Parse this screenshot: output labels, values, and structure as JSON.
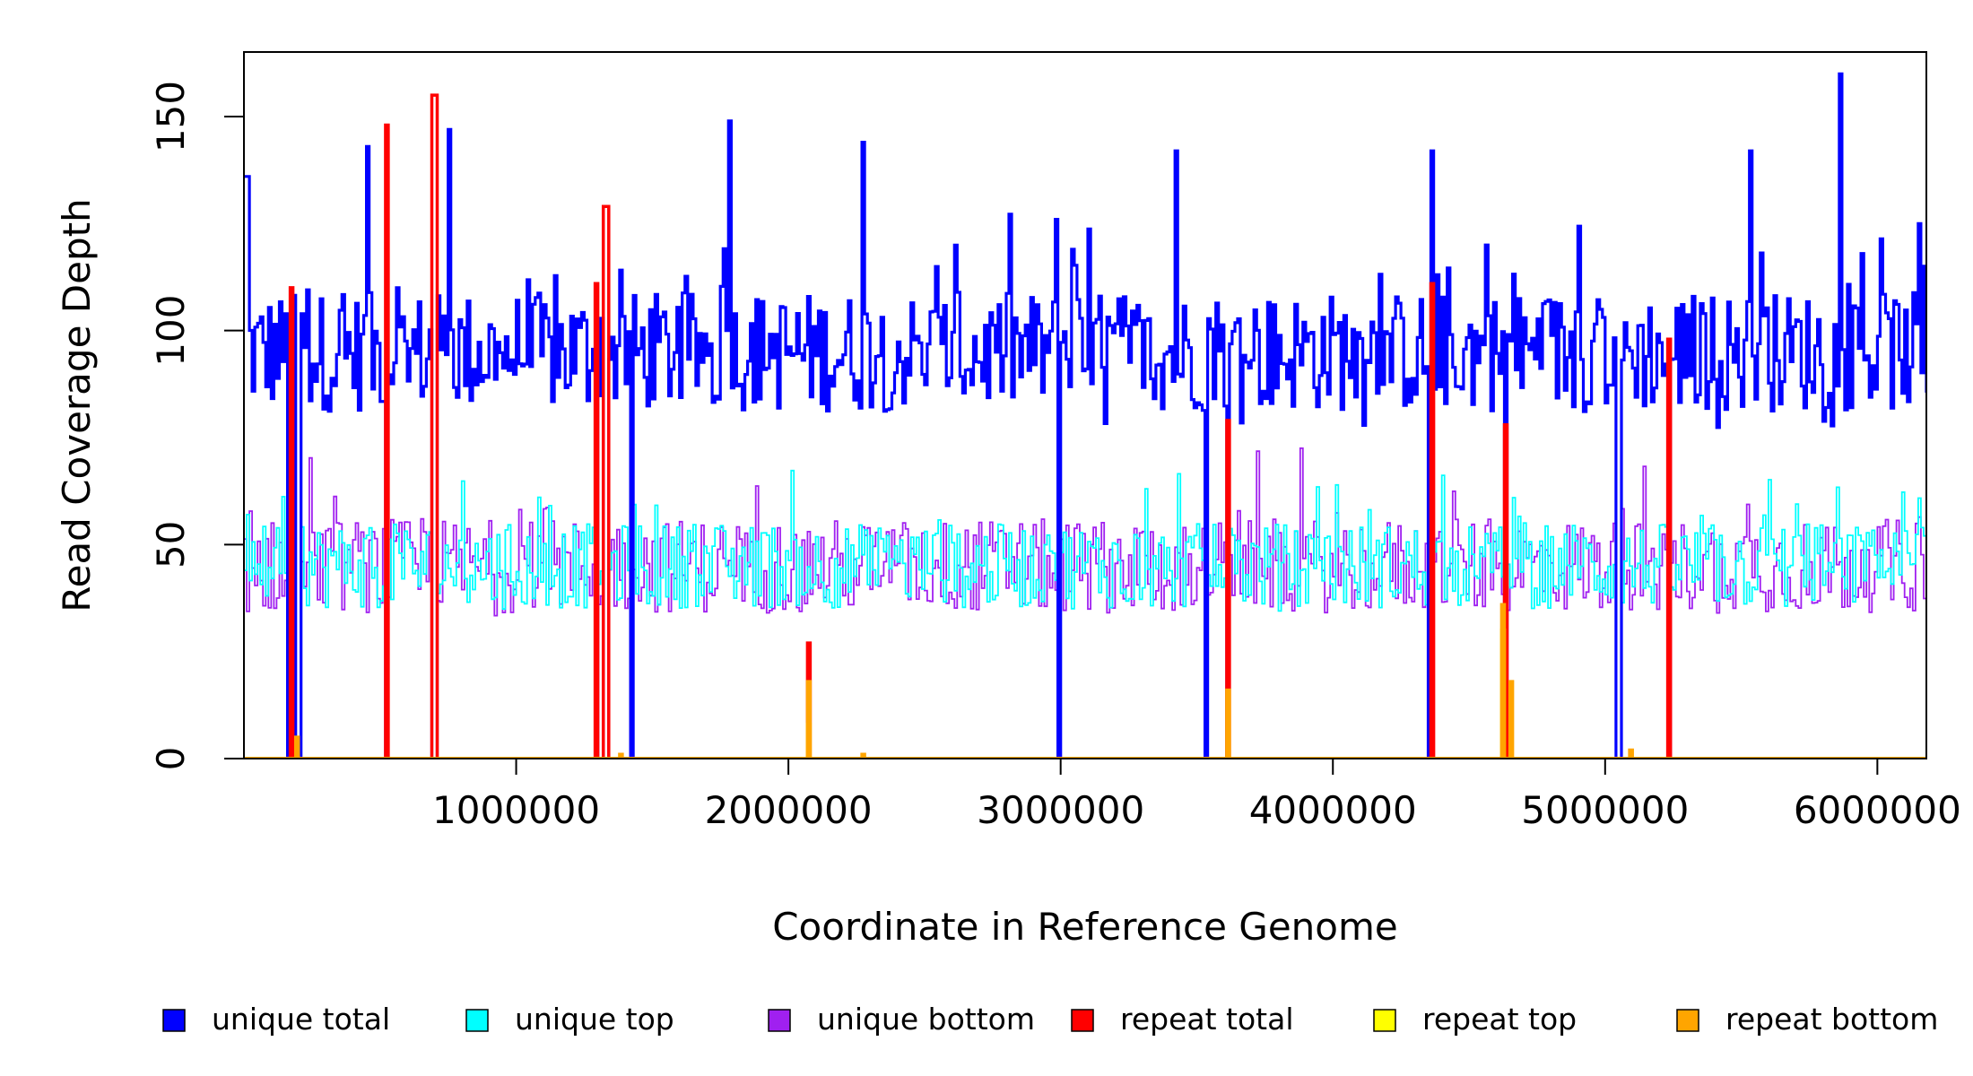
{
  "chart_data": {
    "type": "line",
    "style": "step",
    "title": "",
    "xlabel": "Coordinate in Reference Genome",
    "ylabel": "Read Coverage Depth",
    "xlim": [
      0,
      6180000
    ],
    "ylim": [
      0,
      165
    ],
    "x_ticks": [
      1000000,
      2000000,
      3000000,
      4000000,
      5000000,
      6000000
    ],
    "x_tick_labels": [
      "1000000",
      "2000000",
      "3000000",
      "4000000",
      "5000000",
      "6000000"
    ],
    "y_ticks": [
      0,
      50,
      100,
      150
    ],
    "y_tick_labels": [
      "0",
      "50",
      "100",
      "150"
    ],
    "bin_size": 10000,
    "legend": [
      {
        "name": "unique total",
        "color": "#0000ff"
      },
      {
        "name": "unique top",
        "color": "#00ffff"
      },
      {
        "name": "unique bottom",
        "color": "#a020f0"
      },
      {
        "name": "repeat total",
        "color": "#ff0000"
      },
      {
        "name": "repeat top",
        "color": "#ffff00"
      },
      {
        "name": "repeat bottom",
        "color": "#ffa500"
      }
    ],
    "legend_position": "bottom",
    "series": [
      {
        "name": "unique total",
        "color": "#0000ff",
        "base": 95,
        "amp": 14,
        "spike_max": 160,
        "peaks": [
          [
            5000,
            136
          ],
          [
            450000,
            143
          ],
          [
            560000,
            110
          ],
          [
            750000,
            147
          ],
          [
            1780000,
            149
          ],
          [
            2270000,
            144
          ],
          [
            2980000,
            126
          ],
          [
            3420000,
            142
          ],
          [
            4360000,
            142
          ],
          [
            4560000,
            120
          ],
          [
            5050000,
            119
          ],
          [
            5530000,
            142
          ],
          [
            5860000,
            160
          ],
          [
            5940000,
            118
          ],
          [
            6150000,
            125
          ]
        ]
      },
      {
        "name": "unique top",
        "color": "#00ffff",
        "base": 45,
        "amp": 10
      },
      {
        "name": "unique bottom",
        "color": "#a020f0",
        "base": 45,
        "amp": 11
      },
      {
        "name": "repeat total",
        "color": "#ff0000",
        "peaks": [
          [
            170000,
            110
          ],
          [
            520000,
            148
          ],
          [
            695000,
            155
          ],
          [
            1290000,
            111
          ],
          [
            1325000,
            129
          ],
          [
            2070000,
            27
          ],
          [
            3610000,
            79
          ],
          [
            4360000,
            111
          ],
          [
            4630000,
            78
          ],
          [
            5230000,
            98
          ]
        ]
      },
      {
        "name": "repeat top",
        "color": "#ffff00",
        "peaks": [
          [
            2070000,
            8
          ],
          [
            4620000,
            30
          ]
        ]
      },
      {
        "name": "repeat bottom",
        "color": "#ffa500",
        "peaks": [
          [
            190000,
            5
          ],
          [
            1380000,
            1
          ],
          [
            2070000,
            18
          ],
          [
            2270000,
            1
          ],
          [
            3610000,
            16
          ],
          [
            4620000,
            36
          ],
          [
            4650000,
            18
          ],
          [
            5090000,
            2
          ]
        ]
      }
    ],
    "dropouts": [
      165000,
      195000,
      520000,
      695000,
      1290000,
      1325000,
      1420000,
      2990000,
      3530000,
      3610000,
      4350000,
      4630000,
      5045000,
      5230000
    ]
  }
}
